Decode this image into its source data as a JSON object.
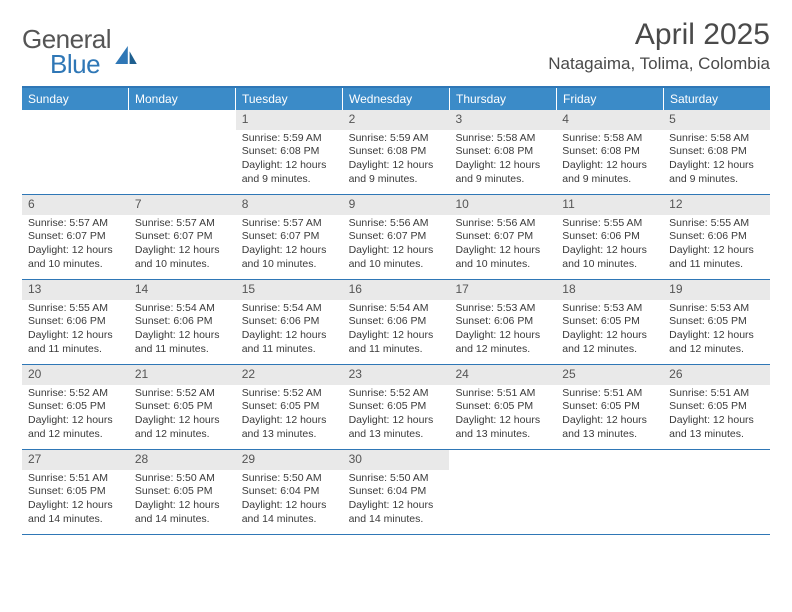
{
  "brand": {
    "general": "General",
    "blue": "Blue"
  },
  "title": "April 2025",
  "location": "Natagaima, Tolima, Colombia",
  "colors": {
    "header_bg": "#3b8bc8",
    "header_text": "#ffffff",
    "rule": "#2f77b6",
    "daynum_bg": "#e9e9e9",
    "text": "#3a3a3a"
  },
  "weekdays": [
    "Sunday",
    "Monday",
    "Tuesday",
    "Wednesday",
    "Thursday",
    "Friday",
    "Saturday"
  ],
  "weeks": [
    [
      null,
      null,
      {
        "n": "1",
        "r": "5:59 AM",
        "s": "6:08 PM",
        "dh": "12",
        "dm": "9"
      },
      {
        "n": "2",
        "r": "5:59 AM",
        "s": "6:08 PM",
        "dh": "12",
        "dm": "9"
      },
      {
        "n": "3",
        "r": "5:58 AM",
        "s": "6:08 PM",
        "dh": "12",
        "dm": "9"
      },
      {
        "n": "4",
        "r": "5:58 AM",
        "s": "6:08 PM",
        "dh": "12",
        "dm": "9"
      },
      {
        "n": "5",
        "r": "5:58 AM",
        "s": "6:08 PM",
        "dh": "12",
        "dm": "9"
      }
    ],
    [
      {
        "n": "6",
        "r": "5:57 AM",
        "s": "6:07 PM",
        "dh": "12",
        "dm": "10"
      },
      {
        "n": "7",
        "r": "5:57 AM",
        "s": "6:07 PM",
        "dh": "12",
        "dm": "10"
      },
      {
        "n": "8",
        "r": "5:57 AM",
        "s": "6:07 PM",
        "dh": "12",
        "dm": "10"
      },
      {
        "n": "9",
        "r": "5:56 AM",
        "s": "6:07 PM",
        "dh": "12",
        "dm": "10"
      },
      {
        "n": "10",
        "r": "5:56 AM",
        "s": "6:07 PM",
        "dh": "12",
        "dm": "10"
      },
      {
        "n": "11",
        "r": "5:55 AM",
        "s": "6:06 PM",
        "dh": "12",
        "dm": "10"
      },
      {
        "n": "12",
        "r": "5:55 AM",
        "s": "6:06 PM",
        "dh": "12",
        "dm": "11"
      }
    ],
    [
      {
        "n": "13",
        "r": "5:55 AM",
        "s": "6:06 PM",
        "dh": "12",
        "dm": "11"
      },
      {
        "n": "14",
        "r": "5:54 AM",
        "s": "6:06 PM",
        "dh": "12",
        "dm": "11"
      },
      {
        "n": "15",
        "r": "5:54 AM",
        "s": "6:06 PM",
        "dh": "12",
        "dm": "11"
      },
      {
        "n": "16",
        "r": "5:54 AM",
        "s": "6:06 PM",
        "dh": "12",
        "dm": "11"
      },
      {
        "n": "17",
        "r": "5:53 AM",
        "s": "6:06 PM",
        "dh": "12",
        "dm": "12"
      },
      {
        "n": "18",
        "r": "5:53 AM",
        "s": "6:05 PM",
        "dh": "12",
        "dm": "12"
      },
      {
        "n": "19",
        "r": "5:53 AM",
        "s": "6:05 PM",
        "dh": "12",
        "dm": "12"
      }
    ],
    [
      {
        "n": "20",
        "r": "5:52 AM",
        "s": "6:05 PM",
        "dh": "12",
        "dm": "12"
      },
      {
        "n": "21",
        "r": "5:52 AM",
        "s": "6:05 PM",
        "dh": "12",
        "dm": "12"
      },
      {
        "n": "22",
        "r": "5:52 AM",
        "s": "6:05 PM",
        "dh": "12",
        "dm": "13"
      },
      {
        "n": "23",
        "r": "5:52 AM",
        "s": "6:05 PM",
        "dh": "12",
        "dm": "13"
      },
      {
        "n": "24",
        "r": "5:51 AM",
        "s": "6:05 PM",
        "dh": "12",
        "dm": "13"
      },
      {
        "n": "25",
        "r": "5:51 AM",
        "s": "6:05 PM",
        "dh": "12",
        "dm": "13"
      },
      {
        "n": "26",
        "r": "5:51 AM",
        "s": "6:05 PM",
        "dh": "12",
        "dm": "13"
      }
    ],
    [
      {
        "n": "27",
        "r": "5:51 AM",
        "s": "6:05 PM",
        "dh": "12",
        "dm": "14"
      },
      {
        "n": "28",
        "r": "5:50 AM",
        "s": "6:05 PM",
        "dh": "12",
        "dm": "14"
      },
      {
        "n": "29",
        "r": "5:50 AM",
        "s": "6:04 PM",
        "dh": "12",
        "dm": "14"
      },
      {
        "n": "30",
        "r": "5:50 AM",
        "s": "6:04 PM",
        "dh": "12",
        "dm": "14"
      },
      null,
      null,
      null
    ]
  ],
  "labels": {
    "sunrise": "Sunrise: ",
    "sunset": "Sunset: ",
    "daylight_a": "Daylight: ",
    "daylight_b": " hours and ",
    "daylight_c": " minutes."
  }
}
